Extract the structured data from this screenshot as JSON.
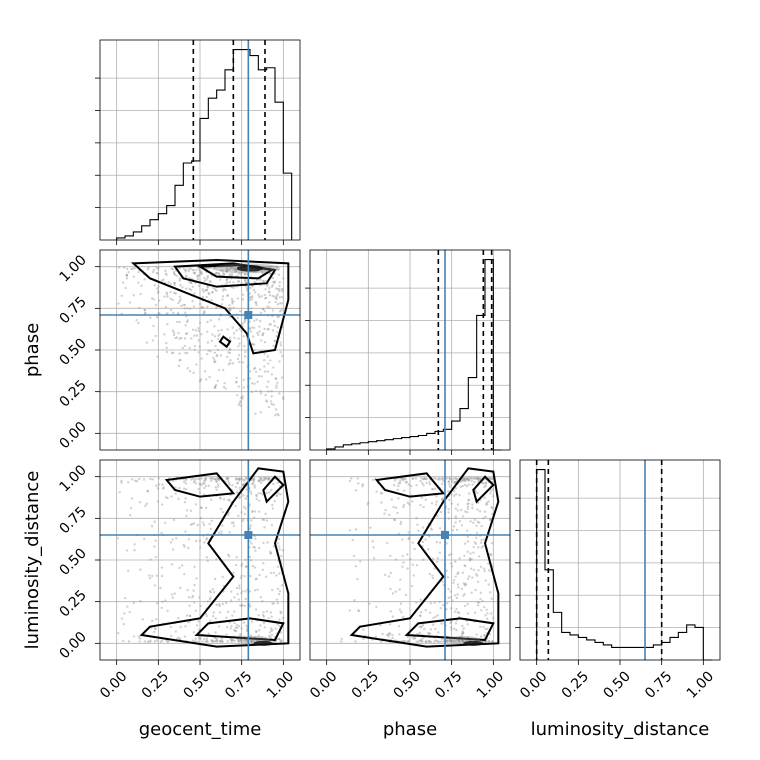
{
  "chart_data": {
    "type": "corner",
    "parameters": [
      "geocent_time",
      "phase",
      "luminosity_distance"
    ],
    "axis_range": [
      -0.1,
      1.1
    ],
    "tick_values": [
      0.0,
      0.25,
      0.5,
      0.75,
      1.0
    ],
    "tick_labels": [
      "0.00",
      "0.25",
      "0.50",
      "0.75",
      "1.00"
    ],
    "xlabels": [
      "geocent_time",
      "phase",
      "luminosity_distance"
    ],
    "ylabels": [
      "",
      "phase",
      "luminosity_distance"
    ],
    "grid": true,
    "truths": [
      0.79,
      0.71,
      0.65
    ],
    "truth_color": "#4682b4",
    "quantiles": [
      [
        0.46,
        0.7,
        0.89
      ],
      [
        0.67,
        0.94,
        0.99
      ],
      [
        0.0,
        0.07,
        0.75
      ]
    ],
    "histograms": [
      {
        "parameter": "geocent_time",
        "bins": [
          0.0,
          0.05,
          0.1,
          0.15,
          0.2,
          0.25,
          0.3,
          0.35,
          0.4,
          0.45,
          0.5,
          0.55,
          0.6,
          0.65,
          0.7,
          0.75,
          0.8,
          0.85,
          0.9,
          0.95,
          1.0,
          1.05
        ],
        "counts": [
          0.01,
          0.02,
          0.04,
          0.07,
          0.1,
          0.13,
          0.17,
          0.27,
          0.38,
          0.39,
          0.6,
          0.7,
          0.74,
          0.84,
          0.94,
          0.94,
          0.91,
          0.84,
          0.85,
          0.68,
          0.33
        ]
      },
      {
        "parameter": "phase",
        "bins": [
          0.0,
          0.05,
          0.1,
          0.15,
          0.2,
          0.25,
          0.3,
          0.35,
          0.4,
          0.45,
          0.5,
          0.55,
          0.6,
          0.65,
          0.7,
          0.75,
          0.8,
          0.85,
          0.9,
          0.95,
          1.0,
          1.05
        ],
        "counts": [
          0.005,
          0.015,
          0.025,
          0.03,
          0.035,
          0.04,
          0.045,
          0.05,
          0.055,
          0.06,
          0.065,
          0.07,
          0.08,
          0.09,
          0.1,
          0.14,
          0.2,
          0.35,
          0.65,
          0.92,
          0.0
        ]
      },
      {
        "parameter": "luminosity_distance",
        "bins": [
          0.0,
          0.05,
          0.1,
          0.15,
          0.2,
          0.25,
          0.3,
          0.35,
          0.4,
          0.45,
          0.5,
          0.55,
          0.6,
          0.65,
          0.7,
          0.75,
          0.8,
          0.85,
          0.9,
          0.95,
          1.0,
          1.05
        ],
        "counts": [
          0.76,
          0.36,
          0.19,
          0.11,
          0.1,
          0.09,
          0.08,
          0.07,
          0.06,
          0.05,
          0.05,
          0.05,
          0.05,
          0.05,
          0.06,
          0.07,
          0.09,
          0.11,
          0.14,
          0.13,
          0.0
        ]
      }
    ],
    "contour_panels": [
      {
        "x": "geocent_time",
        "y": "phase",
        "mode": "peak_at_top_right"
      },
      {
        "x": "geocent_time",
        "y": "luminosity_distance",
        "mode": "peaks_at_top_and_bottom_right"
      },
      {
        "x": "phase",
        "y": "luminosity_distance",
        "mode": "peaks_at_top_and_bottom_right"
      }
    ]
  }
}
